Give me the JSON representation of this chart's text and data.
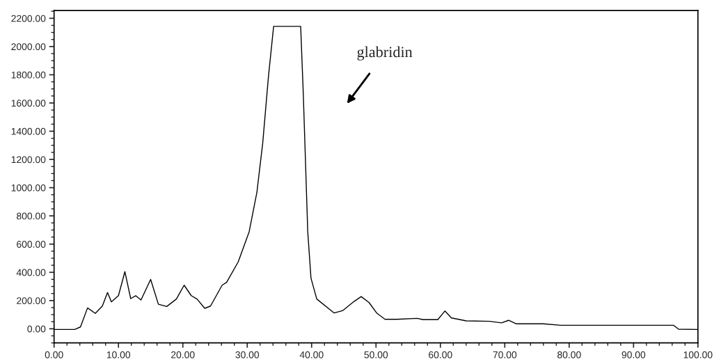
{
  "chart_data": {
    "type": "line",
    "annotations": [
      "glabridin"
    ],
    "x": [
      0,
      3.2,
      4.1,
      5.2,
      6.4,
      7.5,
      8.3,
      8.9,
      10.0,
      11.0,
      11.9,
      12.7,
      13.5,
      15.0,
      16.2,
      17.5,
      19.0,
      20.2,
      21.3,
      22.2,
      23.4,
      24.3,
      26.1,
      26.8,
      28.6,
      30.3,
      31.5,
      32.4,
      33.3,
      34.1,
      38.3,
      38.7,
      39.4,
      39.9,
      40.8,
      43.5,
      44.8,
      46.6,
      47.7,
      48.9,
      50.1,
      51.4,
      53.3,
      56.4,
      57.3,
      59.6,
      60.7,
      61.7,
      64.0,
      67.6,
      69.5,
      70.6,
      71.8,
      76.0,
      78.7,
      96.2,
      97.0,
      100
    ],
    "series": [
      {
        "color": "#000000",
        "values": [
          -5,
          -5,
          13,
          148,
          109,
          161,
          257,
          191,
          235,
          405,
          214,
          234,
          204,
          350,
          174,
          158,
          211,
          309,
          235,
          211,
          145,
          161,
          309,
          329,
          474,
          688,
          967,
          1313,
          1789,
          2143,
          2143,
          1674,
          688,
          359,
          211,
          112,
          128,
          194,
          228,
          187,
          112,
          67,
          67,
          74,
          65,
          65,
          126,
          77,
          56,
          53,
          42,
          60,
          35,
          35,
          25,
          25,
          -3,
          -5
        ]
      }
    ],
    "xlim": [
      0,
      100
    ],
    "ylim": [
      -100,
      2255
    ],
    "xticks": [
      {
        "value": 0,
        "label": "0.00"
      },
      {
        "value": 10,
        "label": "10.00"
      },
      {
        "value": 20,
        "label": "20.00"
      },
      {
        "value": 30,
        "label": "30.00"
      },
      {
        "value": 40,
        "label": "40.00"
      },
      {
        "value": 50,
        "label": "50.00"
      },
      {
        "value": 60,
        "label": "60.00"
      },
      {
        "value": 70,
        "label": "70.00"
      },
      {
        "value": 80,
        "label": "80.00"
      },
      {
        "value": 90,
        "label": "90.00"
      },
      {
        "value": 100,
        "label": "100.00"
      }
    ],
    "yticks": [
      {
        "value": 0,
        "label": "0.00"
      },
      {
        "value": 200,
        "label": "200.00"
      },
      {
        "value": 400,
        "label": "400.00"
      },
      {
        "value": 600,
        "label": "600.00"
      },
      {
        "value": 800,
        "label": "800.00"
      },
      {
        "value": 1000,
        "label": "1000.00"
      },
      {
        "value": 1200,
        "label": "1200.00"
      },
      {
        "value": 1400,
        "label": "1400.00"
      },
      {
        "value": 1600,
        "label": "1600.00"
      },
      {
        "value": 1800,
        "label": "1800.00"
      },
      {
        "value": 2000,
        "label": "2000.00"
      },
      {
        "value": 2200,
        "label": "2200.00"
      }
    ],
    "grid": false,
    "marker": "none",
    "line_style": "solid",
    "legend": false
  }
}
